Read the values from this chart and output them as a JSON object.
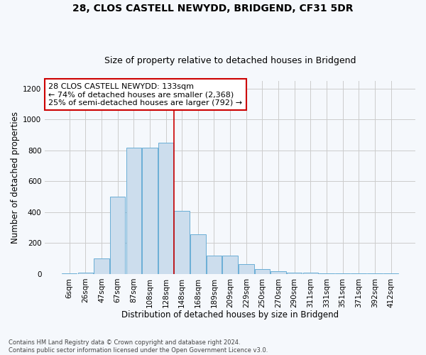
{
  "title": "28, CLOS CASTELL NEWYDD, BRIDGEND, CF31 5DR",
  "subtitle": "Size of property relative to detached houses in Bridgend",
  "xlabel": "Distribution of detached houses by size in Bridgend",
  "ylabel": "Number of detached properties",
  "footer_line1": "Contains HM Land Registry data © Crown copyright and database right 2024.",
  "footer_line2": "Contains public sector information licensed under the Open Government Licence v3.0.",
  "bar_labels": [
    "6sqm",
    "26sqm",
    "47sqm",
    "67sqm",
    "87sqm",
    "108sqm",
    "128sqm",
    "148sqm",
    "168sqm",
    "189sqm",
    "209sqm",
    "229sqm",
    "250sqm",
    "270sqm",
    "290sqm",
    "311sqm",
    "331sqm",
    "351sqm",
    "371sqm",
    "392sqm",
    "412sqm"
  ],
  "bar_values": [
    5,
    10,
    100,
    500,
    820,
    820,
    850,
    410,
    255,
    120,
    120,
    65,
    30,
    18,
    10,
    8,
    3,
    3,
    2,
    2,
    2
  ],
  "bar_color": "#ccdded",
  "bar_edge_color": "#6aaed6",
  "grid_color": "#cccccc",
  "annotation_text": "28 CLOS CASTELL NEWYDD: 133sqm\n← 74% of detached houses are smaller (2,368)\n25% of semi-detached houses are larger (792) →",
  "annotation_box_color": "#ffffff",
  "annotation_box_edge_color": "#cc0000",
  "vline_color": "#cc0000",
  "vline_x_index": 6.5,
  "ylim": [
    0,
    1250
  ],
  "yticks": [
    0,
    200,
    400,
    600,
    800,
    1000,
    1200
  ],
  "background_color": "#f5f8fc",
  "title_fontsize": 10,
  "subtitle_fontsize": 9,
  "xlabel_fontsize": 8.5,
  "ylabel_fontsize": 8.5,
  "tick_fontsize": 7.5,
  "annotation_fontsize": 8
}
